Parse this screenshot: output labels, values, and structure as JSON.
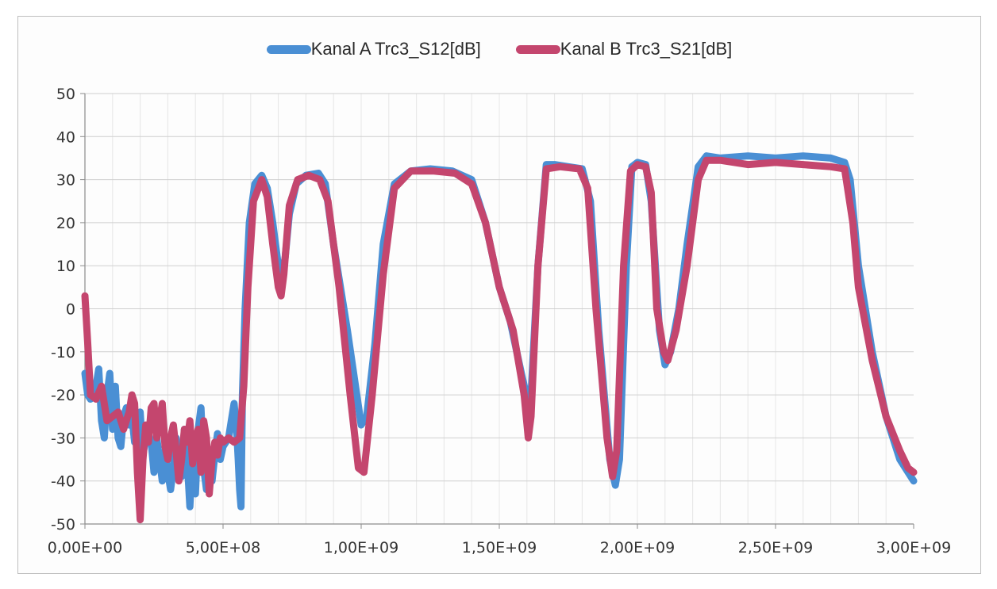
{
  "chart_data": {
    "type": "line",
    "title": "",
    "xlabel": "",
    "ylabel": "",
    "xlim": [
      0,
      3000000000
    ],
    "ylim": [
      -50,
      50
    ],
    "grid": true,
    "legend_position": "top-center",
    "x_ticks": [
      {
        "value": 0,
        "label": "0,00E+00"
      },
      {
        "value": 500000000,
        "label": "5,00E+08"
      },
      {
        "value": 1000000000,
        "label": "1,00E+09"
      },
      {
        "value": 1500000000,
        "label": "1,50E+09"
      },
      {
        "value": 2000000000,
        "label": "2,00E+09"
      },
      {
        "value": 2500000000,
        "label": "2,50E+09"
      },
      {
        "value": 3000000000,
        "label": "3,00E+09"
      }
    ],
    "y_ticks": [
      {
        "value": 50,
        "label": "50"
      },
      {
        "value": 40,
        "label": "40"
      },
      {
        "value": 30,
        "label": "30"
      },
      {
        "value": 20,
        "label": "20"
      },
      {
        "value": 10,
        "label": "10"
      },
      {
        "value": 0,
        "label": "0"
      },
      {
        "value": -10,
        "label": "-10"
      },
      {
        "value": -20,
        "label": "-20"
      },
      {
        "value": -30,
        "label": "-30"
      },
      {
        "value": -40,
        "label": "-40"
      },
      {
        "value": -50,
        "label": "-50"
      }
    ],
    "series": [
      {
        "name": "Kanal A Trc3_S12[dB]",
        "color": "#4a8fd4",
        "points": [
          [
            0,
            -15
          ],
          [
            10000000,
            -20
          ],
          [
            20000000,
            -21
          ],
          [
            40000000,
            -18
          ],
          [
            50000000,
            -14
          ],
          [
            60000000,
            -26
          ],
          [
            70000000,
            -30
          ],
          [
            80000000,
            -20
          ],
          [
            90000000,
            -15
          ],
          [
            100000000,
            -28
          ],
          [
            110000000,
            -18
          ],
          [
            120000000,
            -30
          ],
          [
            130000000,
            -32
          ],
          [
            140000000,
            -25
          ],
          [
            150000000,
            -23
          ],
          [
            160000000,
            -27
          ],
          [
            170000000,
            -25
          ],
          [
            180000000,
            -31
          ],
          [
            190000000,
            -28
          ],
          [
            200000000,
            -24
          ],
          [
            210000000,
            -34
          ],
          [
            220000000,
            -30
          ],
          [
            230000000,
            -29
          ],
          [
            240000000,
            -31
          ],
          [
            250000000,
            -38
          ],
          [
            260000000,
            -30
          ],
          [
            270000000,
            -35
          ],
          [
            280000000,
            -40
          ],
          [
            290000000,
            -33
          ],
          [
            300000000,
            -38
          ],
          [
            310000000,
            -42
          ],
          [
            320000000,
            -37
          ],
          [
            330000000,
            -30
          ],
          [
            340000000,
            -34
          ],
          [
            350000000,
            -39
          ],
          [
            360000000,
            -28
          ],
          [
            370000000,
            -35
          ],
          [
            380000000,
            -46
          ],
          [
            390000000,
            -33
          ],
          [
            400000000,
            -43
          ],
          [
            410000000,
            -28
          ],
          [
            420000000,
            -23
          ],
          [
            430000000,
            -37
          ],
          [
            440000000,
            -42
          ],
          [
            450000000,
            -36
          ],
          [
            460000000,
            -40
          ],
          [
            470000000,
            -34
          ],
          [
            480000000,
            -29
          ],
          [
            490000000,
            -35
          ],
          [
            500000000,
            -32
          ],
          [
            510000000,
            -31
          ],
          [
            520000000,
            -30
          ],
          [
            530000000,
            -26
          ],
          [
            540000000,
            -22
          ],
          [
            550000000,
            -29
          ],
          [
            555000000,
            -35
          ],
          [
            560000000,
            -42
          ],
          [
            565000000,
            -46
          ],
          [
            570000000,
            -20
          ],
          [
            580000000,
            0
          ],
          [
            595000000,
            20
          ],
          [
            615000000,
            29
          ],
          [
            640000000,
            31
          ],
          [
            660000000,
            28
          ],
          [
            680000000,
            20
          ],
          [
            700000000,
            10
          ],
          [
            715000000,
            8
          ],
          [
            725000000,
            12
          ],
          [
            740000000,
            22
          ],
          [
            765000000,
            29
          ],
          [
            800000000,
            31
          ],
          [
            845000000,
            31.5
          ],
          [
            870000000,
            29
          ],
          [
            900000000,
            15
          ],
          [
            950000000,
            -5
          ],
          [
            1000000000,
            -27
          ],
          [
            1020000000,
            -25
          ],
          [
            1050000000,
            -8
          ],
          [
            1080000000,
            15
          ],
          [
            1120000000,
            29
          ],
          [
            1180000000,
            32
          ],
          [
            1250000000,
            32.5
          ],
          [
            1330000000,
            32
          ],
          [
            1400000000,
            30
          ],
          [
            1450000000,
            20
          ],
          [
            1500000000,
            5
          ],
          [
            1540000000,
            -3
          ],
          [
            1580000000,
            -15
          ],
          [
            1605000000,
            -22
          ],
          [
            1615000000,
            -20
          ],
          [
            1640000000,
            10
          ],
          [
            1670000000,
            33.5
          ],
          [
            1700000000,
            33.5
          ],
          [
            1750000000,
            33
          ],
          [
            1800000000,
            32.5
          ],
          [
            1830000000,
            25
          ],
          [
            1860000000,
            -5
          ],
          [
            1900000000,
            -35
          ],
          [
            1920000000,
            -41
          ],
          [
            1935000000,
            -35
          ],
          [
            1960000000,
            10
          ],
          [
            1980000000,
            33
          ],
          [
            2000000000,
            34
          ],
          [
            2030000000,
            33.5
          ],
          [
            2050000000,
            25
          ],
          [
            2080000000,
            -5
          ],
          [
            2100000000,
            -13
          ],
          [
            2120000000,
            -10
          ],
          [
            2150000000,
            0
          ],
          [
            2180000000,
            15
          ],
          [
            2220000000,
            33
          ],
          [
            2250000000,
            35.5
          ],
          [
            2300000000,
            35
          ],
          [
            2400000000,
            35.5
          ],
          [
            2500000000,
            35
          ],
          [
            2600000000,
            35.5
          ],
          [
            2700000000,
            35
          ],
          [
            2750000000,
            34
          ],
          [
            2770000000,
            30
          ],
          [
            2800000000,
            10
          ],
          [
            2850000000,
            -10
          ],
          [
            2900000000,
            -25
          ],
          [
            2950000000,
            -35
          ],
          [
            2980000000,
            -38
          ],
          [
            3000000000,
            -40
          ]
        ]
      },
      {
        "name": "Kanal B Trc3_S21[dB]",
        "color": "#c4466e",
        "points": [
          [
            0,
            3
          ],
          [
            10000000,
            -8
          ],
          [
            20000000,
            -20
          ],
          [
            40000000,
            -21
          ],
          [
            60000000,
            -18
          ],
          [
            80000000,
            -26
          ],
          [
            100000000,
            -25
          ],
          [
            120000000,
            -24
          ],
          [
            140000000,
            -28
          ],
          [
            160000000,
            -24
          ],
          [
            170000000,
            -20
          ],
          [
            180000000,
            -22
          ],
          [
            190000000,
            -38
          ],
          [
            200000000,
            -49
          ],
          [
            210000000,
            -35
          ],
          [
            220000000,
            -27
          ],
          [
            230000000,
            -31
          ],
          [
            240000000,
            -23
          ],
          [
            250000000,
            -22
          ],
          [
            260000000,
            -30
          ],
          [
            270000000,
            -26
          ],
          [
            280000000,
            -22
          ],
          [
            290000000,
            -32
          ],
          [
            300000000,
            -35
          ],
          [
            310000000,
            -30
          ],
          [
            320000000,
            -27
          ],
          [
            330000000,
            -33
          ],
          [
            340000000,
            -40
          ],
          [
            350000000,
            -35
          ],
          [
            360000000,
            -28
          ],
          [
            370000000,
            -31
          ],
          [
            380000000,
            -26
          ],
          [
            390000000,
            -36
          ],
          [
            400000000,
            -30
          ],
          [
            410000000,
            -28
          ],
          [
            420000000,
            -38
          ],
          [
            430000000,
            -26
          ],
          [
            440000000,
            -30
          ],
          [
            450000000,
            -43
          ],
          [
            460000000,
            -35
          ],
          [
            470000000,
            -31
          ],
          [
            480000000,
            -34
          ],
          [
            490000000,
            -30
          ],
          [
            500000000,
            -31
          ],
          [
            520000000,
            -30
          ],
          [
            540000000,
            -31
          ],
          [
            560000000,
            -30
          ],
          [
            575000000,
            -18
          ],
          [
            590000000,
            5
          ],
          [
            610000000,
            25
          ],
          [
            640000000,
            30
          ],
          [
            660000000,
            26
          ],
          [
            680000000,
            15
          ],
          [
            700000000,
            5
          ],
          [
            710000000,
            3
          ],
          [
            720000000,
            8
          ],
          [
            740000000,
            24
          ],
          [
            770000000,
            30
          ],
          [
            810000000,
            31
          ],
          [
            850000000,
            30
          ],
          [
            880000000,
            25
          ],
          [
            920000000,
            5
          ],
          [
            960000000,
            -20
          ],
          [
            990000000,
            -37
          ],
          [
            1010000000,
            -38
          ],
          [
            1040000000,
            -20
          ],
          [
            1080000000,
            8
          ],
          [
            1120000000,
            28
          ],
          [
            1180000000,
            32
          ],
          [
            1260000000,
            32
          ],
          [
            1340000000,
            31.5
          ],
          [
            1400000000,
            29
          ],
          [
            1450000000,
            20
          ],
          [
            1500000000,
            5
          ],
          [
            1550000000,
            -5
          ],
          [
            1590000000,
            -20
          ],
          [
            1605000000,
            -30
          ],
          [
            1615000000,
            -25
          ],
          [
            1640000000,
            10
          ],
          [
            1670000000,
            32.5
          ],
          [
            1720000000,
            33
          ],
          [
            1790000000,
            32.5
          ],
          [
            1820000000,
            28
          ],
          [
            1850000000,
            0
          ],
          [
            1890000000,
            -30
          ],
          [
            1910000000,
            -39
          ],
          [
            1925000000,
            -33
          ],
          [
            1950000000,
            10
          ],
          [
            1975000000,
            32
          ],
          [
            2000000000,
            33.5
          ],
          [
            2030000000,
            33
          ],
          [
            2050000000,
            27
          ],
          [
            2070000000,
            0
          ],
          [
            2095000000,
            -10
          ],
          [
            2110000000,
            -12
          ],
          [
            2140000000,
            -5
          ],
          [
            2180000000,
            10
          ],
          [
            2220000000,
            30
          ],
          [
            2250000000,
            34.5
          ],
          [
            2300000000,
            34.5
          ],
          [
            2400000000,
            33.5
          ],
          [
            2500000000,
            34
          ],
          [
            2600000000,
            33.5
          ],
          [
            2700000000,
            33
          ],
          [
            2750000000,
            32.5
          ],
          [
            2780000000,
            20
          ],
          [
            2800000000,
            5
          ],
          [
            2850000000,
            -12
          ],
          [
            2900000000,
            -25
          ],
          [
            2950000000,
            -33
          ],
          [
            2980000000,
            -37
          ],
          [
            3000000000,
            -38
          ]
        ]
      }
    ]
  }
}
